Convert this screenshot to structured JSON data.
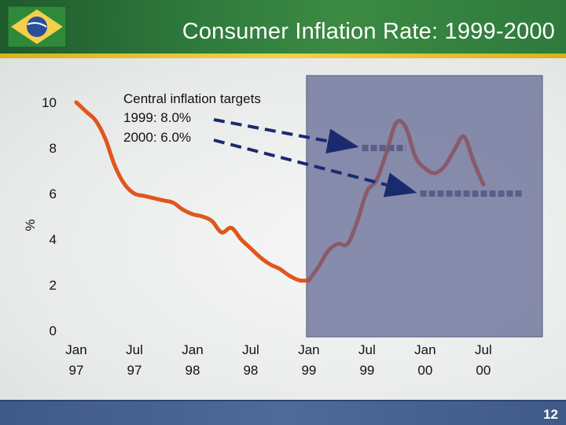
{
  "slide": {
    "title": "Consumer Inflation Rate: 1999-2000",
    "page_number": "12"
  },
  "colors": {
    "header": "#2f7a3d",
    "accent_stripe": "#f2d04a",
    "footer": "#4e6a98",
    "line_pre": "#e0561f",
    "line_post": "#8a5a6a",
    "shade": "#6b709a",
    "target_arrow": "#1b2a6e"
  },
  "chart_data": {
    "type": "line",
    "title": "Consumer Inflation Rate: 1999-2000",
    "ylabel": "%",
    "xlabel": "",
    "ylim": [
      0,
      10.5
    ],
    "y_ticks": [
      0,
      2,
      4,
      6,
      8,
      10
    ],
    "x_ticks": [
      {
        "label_top": "Jan",
        "label_bottom": "97",
        "t": 0
      },
      {
        "label_top": "Jul",
        "label_bottom": "97",
        "t": 6
      },
      {
        "label_top": "Jan",
        "label_bottom": "98",
        "t": 12
      },
      {
        "label_top": "Jul",
        "label_bottom": "98",
        "t": 18
      },
      {
        "label_top": "Jan",
        "label_bottom": "99",
        "t": 24
      },
      {
        "label_top": "Jul",
        "label_bottom": "99",
        "t": 30
      },
      {
        "label_top": "Jan",
        "label_bottom": "00",
        "t": 36
      },
      {
        "label_top": "Jul",
        "label_bottom": "00",
        "t": 42
      }
    ],
    "series_pre": [
      [
        0,
        10.0
      ],
      [
        1,
        9.6
      ],
      [
        2,
        9.2
      ],
      [
        3,
        8.4
      ],
      [
        4,
        7.2
      ],
      [
        5,
        6.4
      ],
      [
        6,
        6.0
      ],
      [
        7,
        5.9
      ],
      [
        8,
        5.8
      ],
      [
        9,
        5.7
      ],
      [
        10,
        5.6
      ],
      [
        11,
        5.3
      ],
      [
        12,
        5.1
      ],
      [
        13,
        5.0
      ],
      [
        14,
        4.8
      ],
      [
        15,
        4.3
      ],
      [
        16,
        4.5
      ],
      [
        17,
        4.0
      ],
      [
        18,
        3.6
      ],
      [
        19,
        3.2
      ],
      [
        20,
        2.9
      ],
      [
        21,
        2.7
      ],
      [
        22,
        2.4
      ],
      [
        23,
        2.2
      ],
      [
        24,
        2.2
      ]
    ],
    "series_post": [
      [
        24,
        2.2
      ],
      [
        25,
        2.8
      ],
      [
        26,
        3.5
      ],
      [
        27,
        3.8
      ],
      [
        28,
        3.8
      ],
      [
        29,
        4.8
      ],
      [
        30,
        6.1
      ],
      [
        31,
        6.6
      ],
      [
        32,
        7.8
      ],
      [
        33,
        9.1
      ],
      [
        34,
        8.9
      ],
      [
        35,
        7.6
      ],
      [
        36,
        7.1
      ],
      [
        37,
        6.9
      ],
      [
        38,
        7.2
      ],
      [
        39,
        7.9
      ],
      [
        40,
        8.5
      ],
      [
        41,
        7.4
      ],
      [
        42,
        6.4
      ]
    ],
    "shaded_from_t": 24,
    "targets": {
      "label": "Central inflation targets",
      "items": [
        {
          "label": "1999: 8.0%",
          "value": 8.0,
          "from_t": 29,
          "to_t": 34
        },
        {
          "label": "2000: 6.0%",
          "value": 6.0,
          "from_t": 35,
          "to_t": 46
        }
      ]
    }
  }
}
